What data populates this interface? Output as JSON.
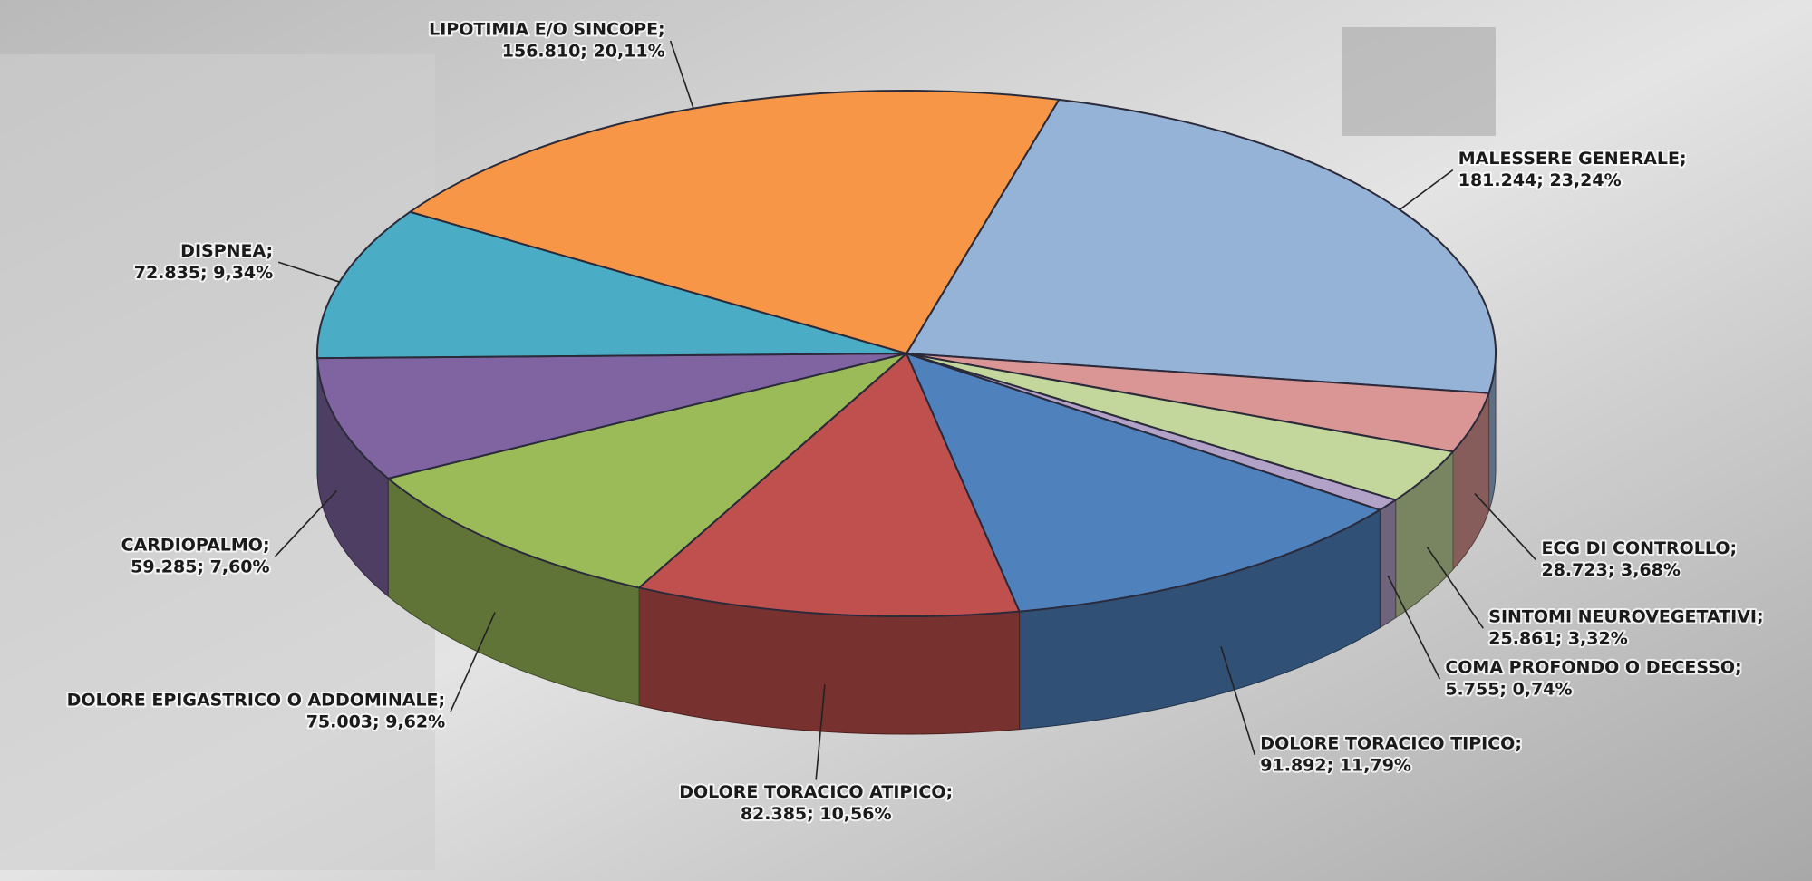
{
  "chart_data": {
    "type": "pie3d",
    "categories": [
      "MALESSERE GENERALE;",
      "ECG DI CONTROLLO;",
      "SINTOMI NEUROVEGETATIVI;",
      "COMA PROFONDO O DECESSO;",
      "DOLORE TORACICO TIPICO;",
      "DOLORE TORACICO ATIPICO;",
      "DOLORE EPIGASTRICO O ADDOMINALE;",
      "CARDIOPALMO;",
      "DISPNEA;",
      "LIPOTIMIA E/O SINCOPE;"
    ],
    "values": [
      181244,
      28723,
      25861,
      5755,
      91892,
      82385,
      75003,
      59285,
      72835,
      156810
    ],
    "value_labels": [
      "181.244; 23,24%",
      "28.723; 3,68%",
      "25.861; 3,32%",
      "5.755; 0,74%",
      "91.892; 11,79%",
      "82.385; 10,56%",
      "75.003; 9,62%",
      "59.285; 7,60%",
      "72.835; 9,34%",
      "156.810; 20,11%"
    ],
    "colors": [
      "#95b3d7",
      "#d99694",
      "#c3d69b",
      "#b3a2c7",
      "#4f81bd",
      "#c0504d",
      "#9bbb59",
      "#8064a2",
      "#4bacc6",
      "#f79646"
    ]
  }
}
